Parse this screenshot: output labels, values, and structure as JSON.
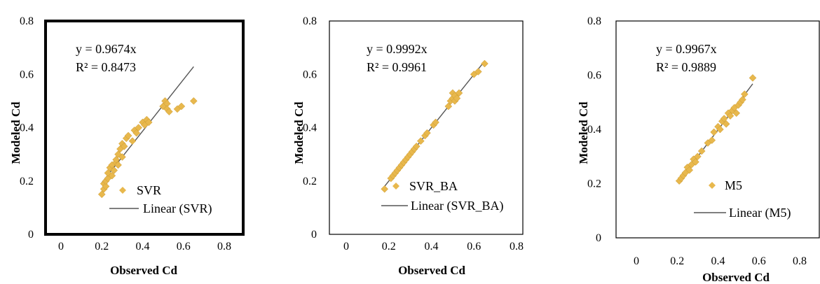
{
  "chart_data": [
    {
      "type": "scatter",
      "title": "",
      "xlabel": "Observed Cd",
      "ylabel": "Modeled Cd",
      "xlim": [
        0,
        0.9
      ],
      "ylim": [
        0,
        0.8
      ],
      "x_ticks": [
        "0",
        "0.2",
        "0.4",
        "0.6",
        "0.8"
      ],
      "y_ticks": [
        "0",
        "0.2",
        "0.4",
        "0.6",
        "0.8"
      ],
      "equation": "y = 0.9674x",
      "r_squared": "R² = 0.8473",
      "slope": 0.9674,
      "trend_x": [
        0.2,
        0.65
      ],
      "legend": [
        "SVR",
        "Linear (SVR)"
      ],
      "legend_position": "bottom-right",
      "frame": "thick",
      "series": [
        {
          "name": "SVR",
          "x": [
            0.2,
            0.21,
            0.21,
            0.22,
            0.22,
            0.23,
            0.23,
            0.24,
            0.25,
            0.25,
            0.26,
            0.27,
            0.27,
            0.28,
            0.28,
            0.29,
            0.3,
            0.3,
            0.31,
            0.32,
            0.33,
            0.35,
            0.36,
            0.37,
            0.38,
            0.4,
            0.41,
            0.42,
            0.43,
            0.5,
            0.51,
            0.52,
            0.52,
            0.53,
            0.57,
            0.59,
            0.65
          ],
          "y": [
            0.15,
            0.17,
            0.19,
            0.18,
            0.2,
            0.21,
            0.23,
            0.25,
            0.22,
            0.26,
            0.24,
            0.27,
            0.28,
            0.26,
            0.3,
            0.32,
            0.29,
            0.34,
            0.33,
            0.36,
            0.37,
            0.35,
            0.39,
            0.38,
            0.4,
            0.42,
            0.41,
            0.43,
            0.42,
            0.48,
            0.5,
            0.49,
            0.47,
            0.46,
            0.47,
            0.48,
            0.5
          ]
        }
      ]
    },
    {
      "type": "scatter",
      "title": "",
      "xlabel": "Observed Cd",
      "ylabel": "Modeled Cd",
      "xlim": [
        0,
        0.9
      ],
      "ylim": [
        0,
        0.8
      ],
      "x_ticks": [
        "0",
        "0.2",
        "0.4",
        "0.6",
        "0.8"
      ],
      "y_ticks": [
        "0",
        "0.2",
        "0.4",
        "0.6",
        "0.8"
      ],
      "equation": "y = 0.9992x",
      "r_squared": "R² = 0.9961",
      "slope": 0.9992,
      "trend_x": [
        0.18,
        0.65
      ],
      "legend": [
        "SVR_BA",
        "Linear (SVR_BA)"
      ],
      "legend_position": "bottom-right",
      "frame": "thin",
      "series": [
        {
          "name": "SVR_BA",
          "x": [
            0.18,
            0.21,
            0.22,
            0.23,
            0.24,
            0.25,
            0.26,
            0.27,
            0.28,
            0.29,
            0.3,
            0.31,
            0.32,
            0.33,
            0.35,
            0.37,
            0.38,
            0.41,
            0.42,
            0.48,
            0.49,
            0.5,
            0.5,
            0.51,
            0.51,
            0.52,
            0.53,
            0.6,
            0.62,
            0.65
          ],
          "y": [
            0.17,
            0.21,
            0.22,
            0.23,
            0.24,
            0.25,
            0.26,
            0.27,
            0.28,
            0.29,
            0.3,
            0.31,
            0.32,
            0.33,
            0.35,
            0.37,
            0.38,
            0.41,
            0.42,
            0.48,
            0.5,
            0.51,
            0.53,
            0.5,
            0.52,
            0.51,
            0.53,
            0.6,
            0.61,
            0.64
          ]
        }
      ]
    },
    {
      "type": "scatter",
      "title": "",
      "xlabel": "Observed Cd",
      "ylabel": "Modeled Cd",
      "xlim": [
        0,
        0.9
      ],
      "ylim": [
        0,
        0.8
      ],
      "x_ticks": [
        "0",
        "0.2",
        "0.4",
        "0.6",
        "0.8"
      ],
      "y_ticks": [
        "0",
        "0.2",
        "0.4",
        "0.6",
        "0.8"
      ],
      "equation": "y = 0.9967x",
      "r_squared": "R² = 0.9889",
      "slope": 0.9967,
      "trend_x": [
        0.21,
        0.57
      ],
      "legend": [
        "M5",
        "Linear (M5)"
      ],
      "legend_position": "bottom-right",
      "frame": "thin",
      "series": [
        {
          "name": "M5",
          "x": [
            0.21,
            0.22,
            0.23,
            0.24,
            0.25,
            0.26,
            0.27,
            0.28,
            0.29,
            0.3,
            0.32,
            0.35,
            0.37,
            0.38,
            0.4,
            0.41,
            0.42,
            0.43,
            0.44,
            0.45,
            0.46,
            0.47,
            0.48,
            0.49,
            0.5,
            0.51,
            0.52,
            0.53,
            0.57
          ],
          "y": [
            0.21,
            0.22,
            0.23,
            0.24,
            0.26,
            0.25,
            0.27,
            0.29,
            0.28,
            0.3,
            0.32,
            0.35,
            0.36,
            0.39,
            0.41,
            0.4,
            0.43,
            0.44,
            0.42,
            0.46,
            0.45,
            0.47,
            0.48,
            0.46,
            0.49,
            0.5,
            0.51,
            0.53,
            0.59
          ]
        }
      ]
    }
  ],
  "colors": {
    "marker": "#E8B84D",
    "trendline": "#555555",
    "frame": "#000000"
  }
}
